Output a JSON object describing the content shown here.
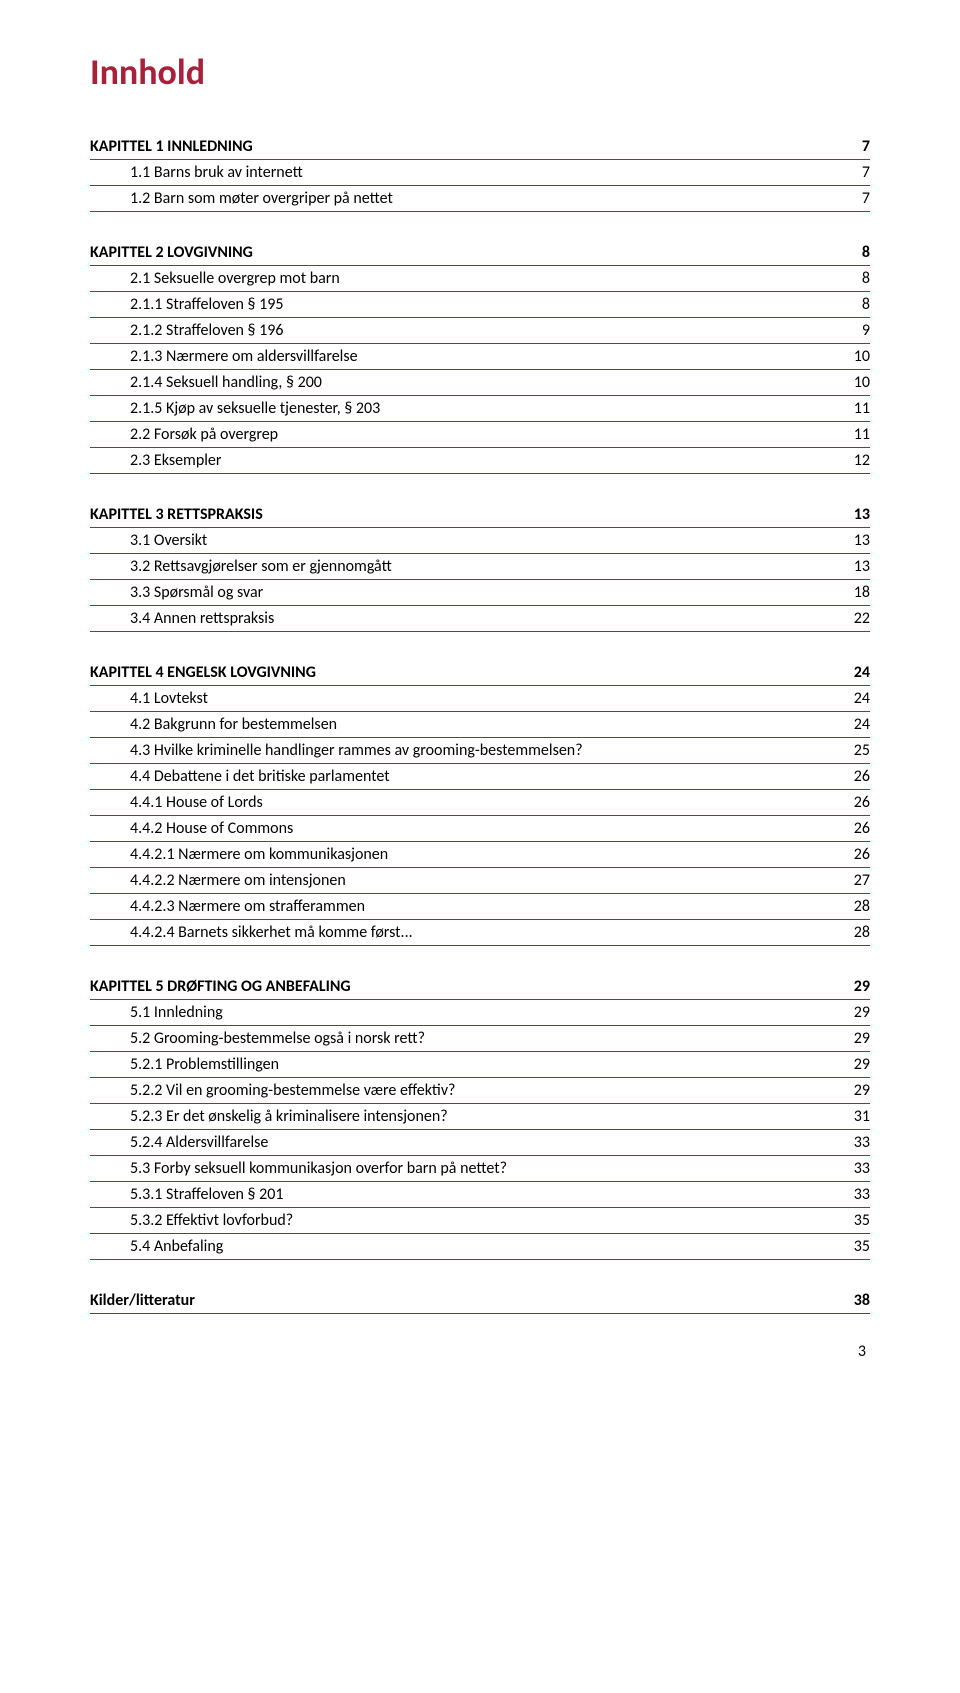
{
  "title": "Innhold",
  "pageNumber": "3",
  "colors": {
    "accent": "#a8213a",
    "text": "#000000",
    "background": "#ffffff"
  },
  "sections": [
    {
      "heading": {
        "label": "KAPITTEL 1 INNLEDNING",
        "page": "7"
      },
      "items": [
        {
          "label": "1.1 Barns bruk av internett",
          "page": "7"
        },
        {
          "label": "1.2 Barn som møter overgriper på nettet",
          "page": "7"
        }
      ]
    },
    {
      "heading": {
        "label": "KAPITTEL 2 LOVGIVNING",
        "page": "8"
      },
      "items": [
        {
          "label": "2.1 Seksuelle overgrep mot barn",
          "page": "8"
        },
        {
          "label": "2.1.1 Straffeloven § 195",
          "page": "8"
        },
        {
          "label": "2.1.2 Straffeloven § 196",
          "page": "9"
        },
        {
          "label": "2.1.3 Nærmere om aldersvillfarelse",
          "page": "10"
        },
        {
          "label": "2.1.4 Seksuell handling, § 200",
          "page": "10"
        },
        {
          "label": "2.1.5 Kjøp av seksuelle tjenester, § 203",
          "page": "11"
        },
        {
          "label": "2.2 Forsøk på overgrep",
          "page": "11"
        },
        {
          "label": "2.3 Eksempler",
          "page": "12"
        }
      ]
    },
    {
      "heading": {
        "label": "KAPITTEL 3 RETTSPRAKSIS",
        "page": "13"
      },
      "items": [
        {
          "label": "3.1 Oversikt",
          "page": "13"
        },
        {
          "label": "3.2 Rettsavgjørelser som er gjennomgått",
          "page": "13"
        },
        {
          "label": "3.3 Spørsmål og svar",
          "page": "18"
        },
        {
          "label": "3.4 Annen rettspraksis",
          "page": "22"
        }
      ]
    },
    {
      "heading": {
        "label": "KAPITTEL 4 ENGELSK LOVGIVNING",
        "page": "24"
      },
      "items": [
        {
          "label": "4.1 Lovtekst",
          "page": "24"
        },
        {
          "label": "4.2 Bakgrunn for bestemmelsen",
          "page": "24"
        },
        {
          "label": "4.3 Hvilke kriminelle handlinger rammes av grooming-bestemmelsen?",
          "page": "25"
        },
        {
          "label": "4.4 Debattene i det britiske parlamentet",
          "page": "26"
        },
        {
          "label": "4.4.1 House of Lords",
          "page": "26"
        },
        {
          "label": "4.4.2 House of Commons",
          "page": "26"
        },
        {
          "label": "4.4.2.1 Nærmere om kommunikasjonen",
          "page": "26"
        },
        {
          "label": "4.4.2.2 Nærmere om intensjonen",
          "page": "27"
        },
        {
          "label": "4.4.2.3 Nærmere om strafferammen",
          "page": "28"
        },
        {
          "label": "4.4.2.4 Barnets sikkerhet må komme først...",
          "page": "28"
        }
      ]
    },
    {
      "heading": {
        "label": "KAPITTEL 5 DRØFTING OG ANBEFALING",
        "page": "29"
      },
      "items": [
        {
          "label": "5.1 Innledning",
          "page": "29"
        },
        {
          "label": "5.2 Grooming-bestemmelse også i norsk rett?",
          "page": "29"
        },
        {
          "label": "5.2.1 Problemstillingen",
          "page": "29"
        },
        {
          "label": "5.2.2 Vil en grooming-bestemmelse være effektiv?",
          "page": "29"
        },
        {
          "label": "5.2.3 Er det ønskelig å kriminalisere intensjonen?",
          "page": "31"
        },
        {
          "label": "5.2.4 Aldersvillfarelse",
          "page": "33"
        },
        {
          "label": "5.3 Forby seksuell kommunikasjon overfor barn på nettet?",
          "page": "33"
        },
        {
          "label": "5.3.1 Straffeloven § 201",
          "page": "33"
        },
        {
          "label": "5.3.2 Effektivt lovforbud?",
          "page": "35"
        },
        {
          "label": "5.4 Anbefaling",
          "page": "35"
        }
      ]
    },
    {
      "heading": {
        "label": "Kilder/litteratur",
        "page": "38"
      },
      "items": []
    }
  ]
}
